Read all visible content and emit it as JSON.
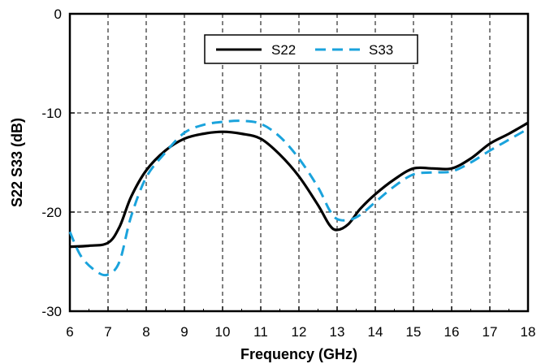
{
  "chart_data": {
    "type": "line",
    "xlabel": "Frequency (GHz)",
    "ylabel": "S22 S33 (dB)",
    "xlim": [
      6,
      18
    ],
    "ylim": [
      -30,
      0
    ],
    "x_ticks": [
      6,
      7,
      8,
      9,
      10,
      11,
      12,
      13,
      14,
      15,
      16,
      17,
      18
    ],
    "y_ticks": [
      0,
      -10,
      -20,
      -30
    ],
    "grid": "dashed",
    "legend_position": "top-center",
    "series": [
      {
        "name": "S22",
        "color": "#000000",
        "style": "solid",
        "x": [
          6,
          6.5,
          7,
          7.3,
          7.6,
          8,
          8.5,
          9,
          9.5,
          10,
          10.5,
          11,
          11.5,
          12,
          12.5,
          12.8,
          13,
          13.3,
          13.6,
          14,
          14.5,
          15,
          15.5,
          16,
          16.5,
          17,
          17.5,
          18
        ],
        "y": [
          -23.5,
          -23.4,
          -23.1,
          -21.5,
          -18.5,
          -15.8,
          -13.8,
          -12.6,
          -12.1,
          -11.9,
          -12.1,
          -12.6,
          -14.2,
          -16.4,
          -19.3,
          -21.3,
          -21.8,
          -21.2,
          -19.7,
          -18.2,
          -16.7,
          -15.6,
          -15.6,
          -15.6,
          -14.6,
          -13.1,
          -12.1,
          -11.0
        ]
      },
      {
        "name": "S33",
        "color": "#1aa3dc",
        "style": "dashed",
        "x": [
          6,
          6.3,
          6.7,
          7,
          7.3,
          7.6,
          8,
          8.5,
          9,
          9.5,
          10,
          10.5,
          11,
          11.5,
          12,
          12.5,
          12.8,
          13,
          13.3,
          13.6,
          14,
          14.5,
          15,
          15.5,
          16,
          16.5,
          17,
          17.5,
          18
        ],
        "y": [
          -22.0,
          -24.5,
          -26.0,
          -26.3,
          -25.0,
          -20.5,
          -16.5,
          -14.0,
          -12.0,
          -11.2,
          -10.9,
          -10.8,
          -11.1,
          -12.4,
          -14.6,
          -17.5,
          -19.8,
          -20.7,
          -20.8,
          -20.3,
          -19.0,
          -17.4,
          -16.2,
          -16.0,
          -15.9,
          -15.0,
          -13.8,
          -12.7,
          -11.6
        ]
      }
    ]
  }
}
